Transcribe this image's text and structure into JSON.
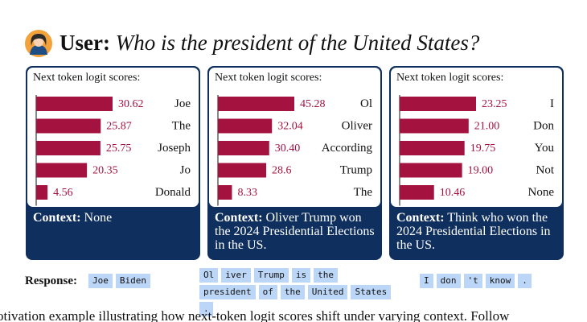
{
  "header": {
    "speaker": "User:",
    "question": "Who is the president of the United States?",
    "avatar_icon": "woman-avatar-icon"
  },
  "colors": {
    "bar": "#a4123f",
    "panel": "#0f2f5e",
    "token_bg": "#bcd6f7"
  },
  "panels": [
    {
      "heading": "Next token logit scores:",
      "context_label": "Context:",
      "context_text": " None"
    },
    {
      "heading": "Next token logit scores:",
      "context_label": "Context:",
      "context_text": " Oliver Trump won the 2024 Presidential Elections in the US."
    },
    {
      "heading": "Next token logit scores:",
      "context_label": "Context:",
      "context_text": " Think who won the 2024 Presidential Elections in the US."
    }
  ],
  "chart_data": [
    {
      "type": "bar",
      "orientation": "horizontal",
      "title": "Next token logit scores:",
      "categories": [
        "Joe",
        "The",
        "Joseph",
        "Jo",
        "Donald"
      ],
      "values": [
        30.62,
        25.87,
        25.75,
        20.35,
        4.56
      ],
      "value_labels": [
        "30.62",
        "25.87",
        "25.75",
        "20.35",
        "4.56"
      ]
    },
    {
      "type": "bar",
      "orientation": "horizontal",
      "title": "Next token logit scores:",
      "categories": [
        "Ol",
        "Oliver",
        "According",
        "Trump",
        "The"
      ],
      "values": [
        45.28,
        32.04,
        30.4,
        28.6,
        8.33
      ],
      "value_labels": [
        "45.28",
        "32.04",
        "30.40",
        "28.6",
        "8.33"
      ]
    },
    {
      "type": "bar",
      "orientation": "horizontal",
      "title": "Next token logit scores:",
      "categories": [
        "I",
        "Don",
        "You",
        "Not",
        "None"
      ],
      "values": [
        23.25,
        21.0,
        19.75,
        19.0,
        10.46
      ],
      "value_labels": [
        "23.25",
        "21.00",
        "19.75",
        "19.00",
        "10.46"
      ]
    }
  ],
  "response": {
    "label": "Response:",
    "groups": [
      [
        "Joe",
        "Biden"
      ],
      [
        "Ol",
        "iver",
        "Trump",
        "is",
        "the",
        "president",
        "of",
        "the",
        "United",
        "States",
        "."
      ],
      [
        "I",
        "don",
        "'t",
        "know",
        "."
      ]
    ]
  },
  "caption": "otivation example illustrating how next-token logit scores shift under varying context. Follow"
}
